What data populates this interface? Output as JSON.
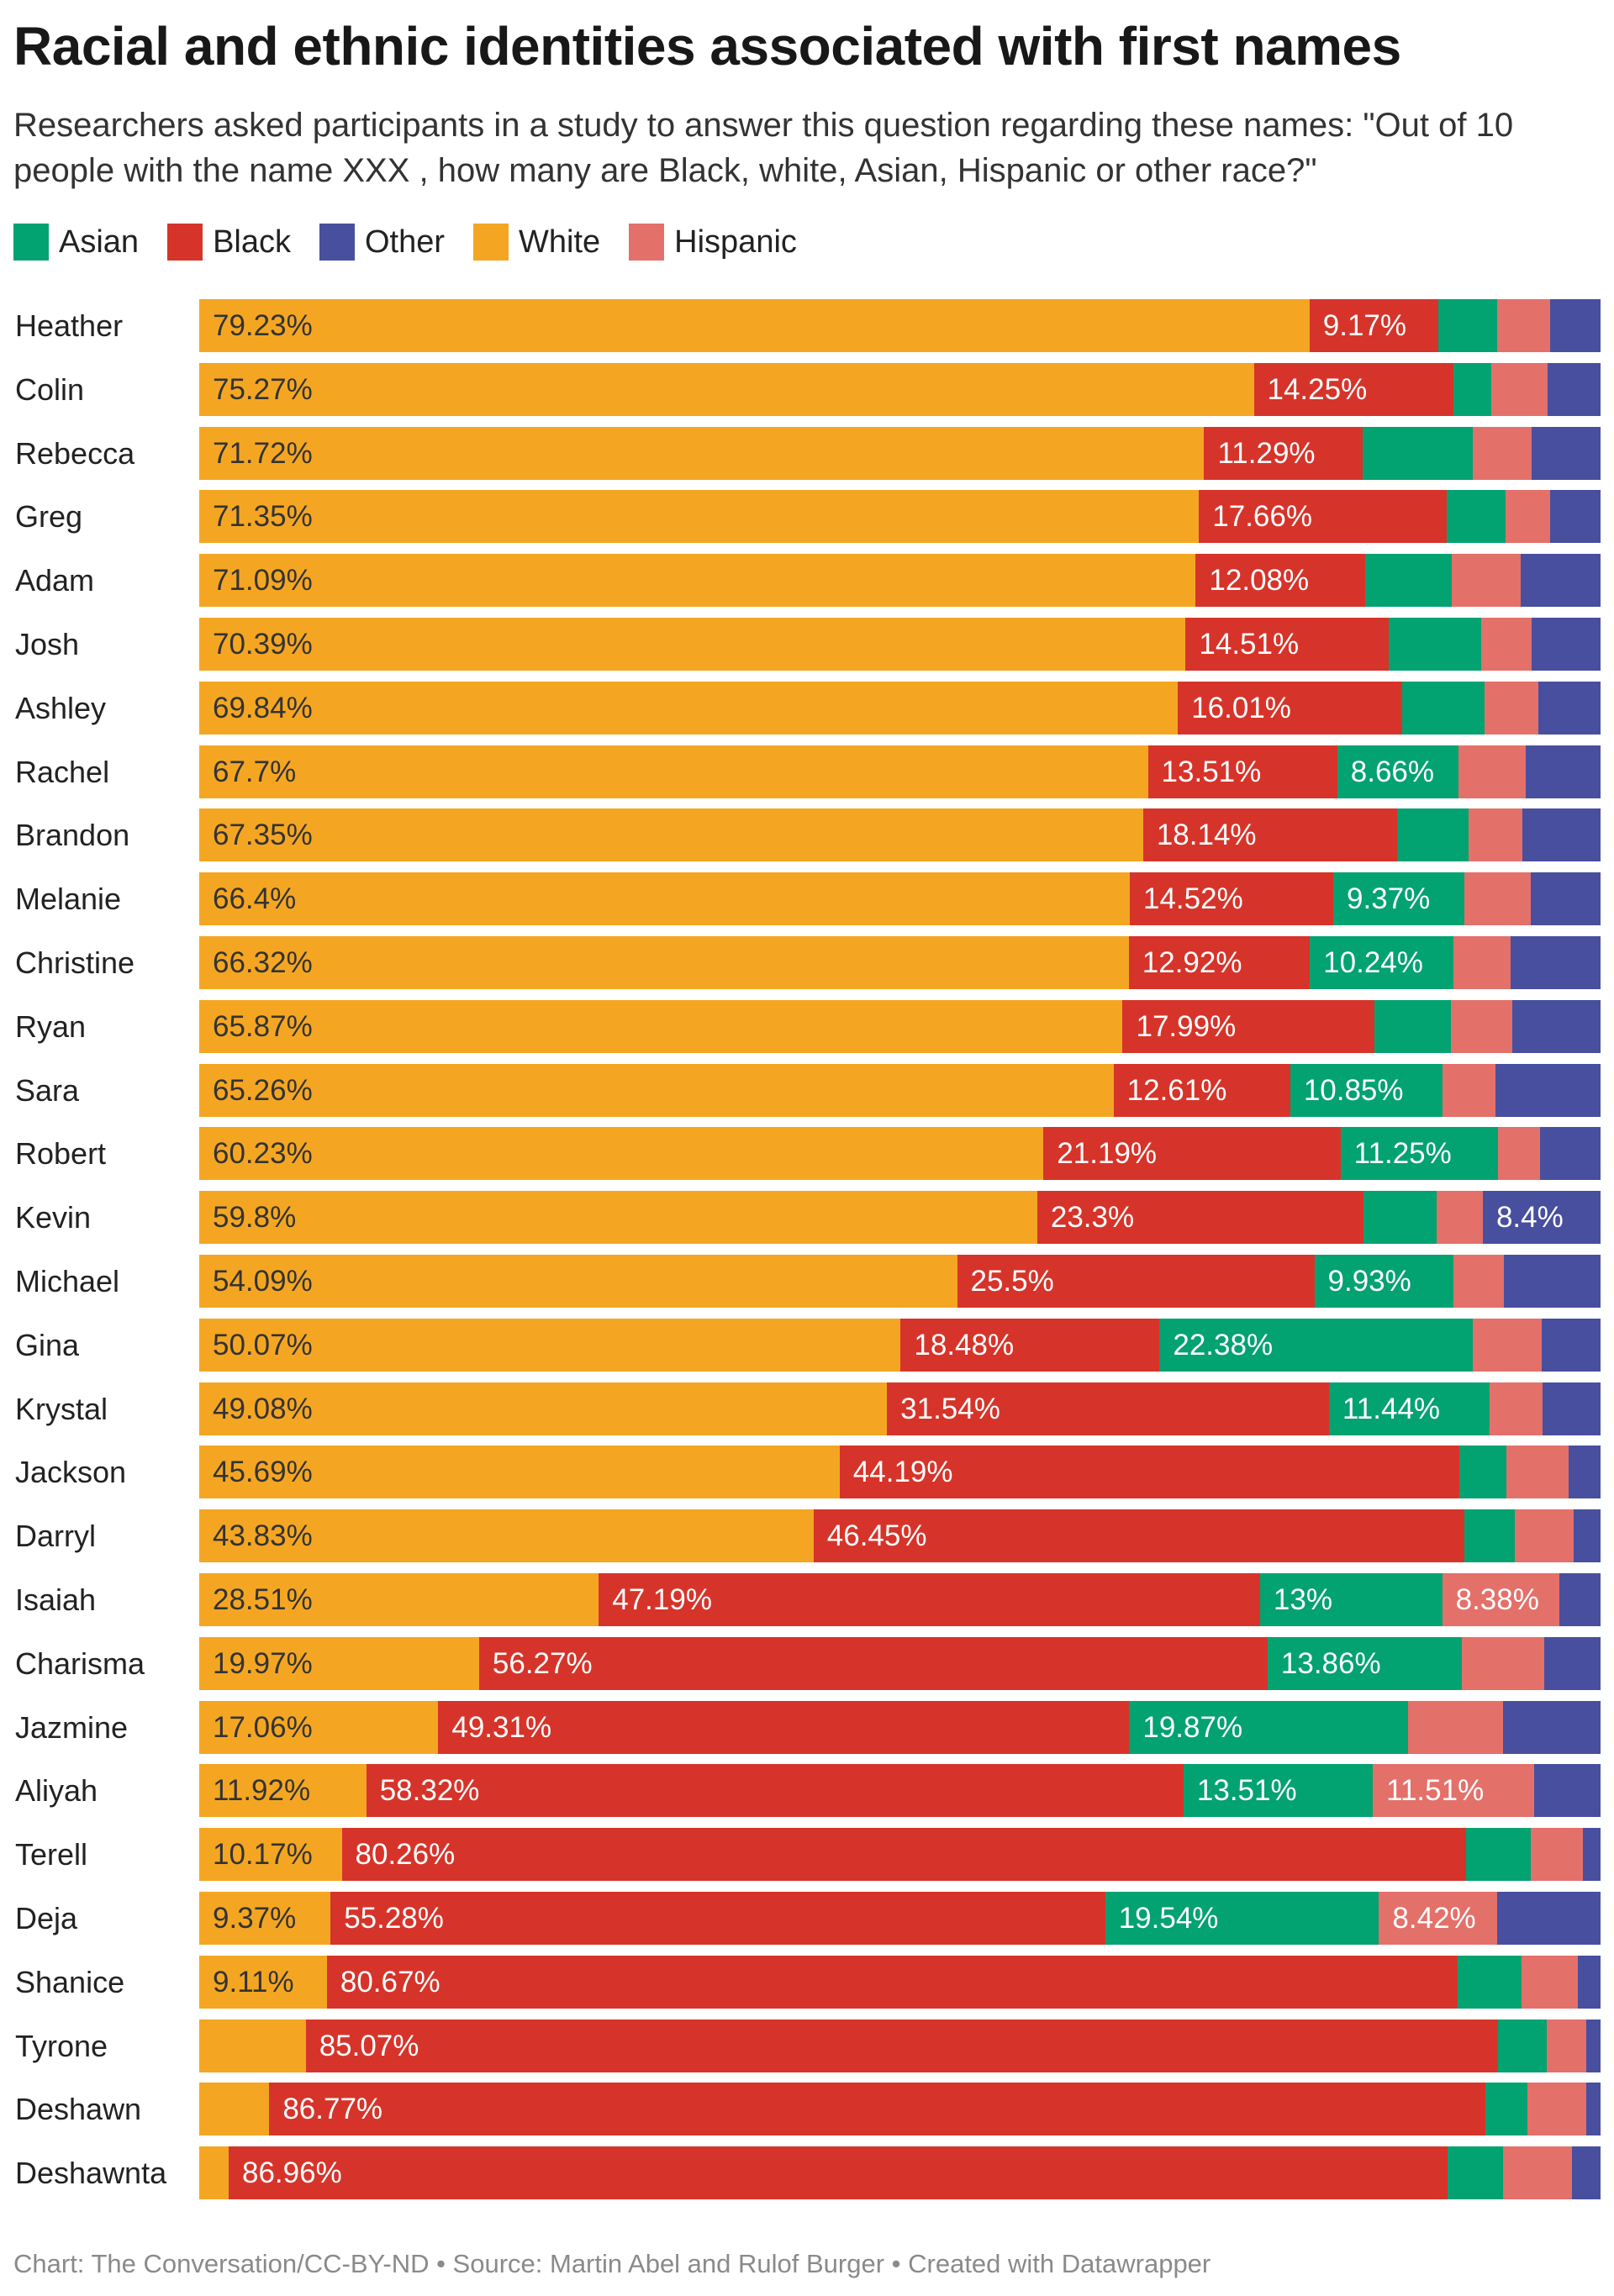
{
  "title": "Racial and ethnic identities associated with first names",
  "subtitle": "Researchers asked participants in a study to answer this question regarding these names: \"Out of 10 people with the name XXX , how many are Black, white, Asian, Hispanic or other race?\"",
  "footer": "Chart: The Conversation/CC-BY-ND • Source: Martin Abel and Rulof Burger • Created with Datawrapper",
  "chart_data": {
    "type": "bar",
    "orientation": "horizontal",
    "stacked": true,
    "unit": "%",
    "xlim": [
      0,
      100
    ],
    "legend_placement": "top-left",
    "legend": [
      {
        "key": "asian",
        "label": "Asian",
        "color": "#03a271"
      },
      {
        "key": "black",
        "label": "Black",
        "color": "#d6342a"
      },
      {
        "key": "other",
        "label": "Other",
        "color": "#484f9e"
      },
      {
        "key": "white",
        "label": "White",
        "color": "#f4a623"
      },
      {
        "key": "hispanic",
        "label": "Hispanic",
        "color": "#e4706a"
      }
    ],
    "segment_order": [
      "white",
      "black",
      "asian",
      "hispanic",
      "other"
    ],
    "rows": [
      {
        "name": "Heather",
        "values": [
          79.23,
          9.17,
          4.2,
          3.8,
          3.6
        ],
        "labels": [
          "79.23%",
          "9.17%",
          "",
          "",
          ""
        ]
      },
      {
        "name": "Colin",
        "values": [
          75.27,
          14.25,
          2.7,
          4.0,
          3.8
        ],
        "labels": [
          "75.27%",
          "14.25%",
          "",
          "",
          ""
        ]
      },
      {
        "name": "Rebecca",
        "values": [
          71.72,
          11.29,
          7.9,
          4.2,
          4.9
        ],
        "labels": [
          "71.72%",
          "11.29%",
          "",
          "",
          ""
        ]
      },
      {
        "name": "Greg",
        "values": [
          71.35,
          17.66,
          4.2,
          3.2,
          3.6
        ],
        "labels": [
          "71.35%",
          "17.66%",
          "",
          "",
          ""
        ]
      },
      {
        "name": "Adam",
        "values": [
          71.09,
          12.08,
          6.2,
          4.9,
          5.7
        ],
        "labels": [
          "71.09%",
          "12.08%",
          "",
          "",
          ""
        ]
      },
      {
        "name": "Josh",
        "values": [
          70.39,
          14.51,
          6.6,
          3.6,
          4.9
        ],
        "labels": [
          "70.39%",
          "14.51%",
          "",
          "",
          ""
        ]
      },
      {
        "name": "Ashley",
        "values": [
          69.84,
          16.01,
          5.9,
          3.8,
          4.45
        ],
        "labels": [
          "69.84%",
          "16.01%",
          "",
          "",
          ""
        ]
      },
      {
        "name": "Rachel",
        "values": [
          67.7,
          13.51,
          8.66,
          4.8,
          5.33
        ],
        "labels": [
          "67.7%",
          "13.51%",
          "8.66%",
          "",
          ""
        ]
      },
      {
        "name": "Brandon",
        "values": [
          67.35,
          18.14,
          5.1,
          3.8,
          5.6
        ],
        "labels": [
          "67.35%",
          "18.14%",
          "",
          "",
          ""
        ]
      },
      {
        "name": "Melanie",
        "values": [
          66.4,
          14.52,
          9.37,
          4.7,
          5.0
        ],
        "labels": [
          "66.4%",
          "14.52%",
          "9.37%",
          "",
          ""
        ]
      },
      {
        "name": "Christine",
        "values": [
          66.32,
          12.92,
          10.24,
          4.1,
          6.4
        ],
        "labels": [
          "66.32%",
          "12.92%",
          "10.24%",
          "",
          ""
        ]
      },
      {
        "name": "Ryan",
        "values": [
          65.87,
          17.99,
          5.4,
          4.4,
          6.3
        ],
        "labels": [
          "65.87%",
          "17.99%",
          "",
          "",
          ""
        ]
      },
      {
        "name": "Sara",
        "values": [
          65.26,
          12.61,
          10.85,
          3.8,
          7.5
        ],
        "labels": [
          "65.26%",
          "12.61%",
          "10.85%",
          "",
          ""
        ]
      },
      {
        "name": "Robert",
        "values": [
          60.23,
          21.19,
          11.25,
          3.0,
          4.3
        ],
        "labels": [
          "60.23%",
          "21.19%",
          "11.25%",
          "",
          ""
        ]
      },
      {
        "name": "Kevin",
        "values": [
          59.8,
          23.3,
          5.2,
          3.3,
          8.4
        ],
        "labels": [
          "59.8%",
          "23.3%",
          "",
          "",
          "8.4%"
        ]
      },
      {
        "name": "Michael",
        "values": [
          54.09,
          25.5,
          9.93,
          3.6,
          6.9
        ],
        "labels": [
          "54.09%",
          "25.5%",
          "9.93%",
          "",
          ""
        ]
      },
      {
        "name": "Gina",
        "values": [
          50.07,
          18.48,
          22.38,
          4.9,
          4.2
        ],
        "labels": [
          "50.07%",
          "18.48%",
          "22.38%",
          "",
          ""
        ]
      },
      {
        "name": "Krystal",
        "values": [
          49.08,
          31.54,
          11.44,
          3.8,
          4.14
        ],
        "labels": [
          "49.08%",
          "31.54%",
          "11.44%",
          "",
          ""
        ]
      },
      {
        "name": "Jackson",
        "values": [
          45.69,
          44.19,
          3.4,
          4.4,
          2.3
        ],
        "labels": [
          "45.69%",
          "44.19%",
          "",
          "",
          ""
        ]
      },
      {
        "name": "Darryl",
        "values": [
          43.83,
          46.45,
          3.6,
          4.2,
          1.9
        ],
        "labels": [
          "43.83%",
          "46.45%",
          "",
          "",
          ""
        ]
      },
      {
        "name": "Isaiah",
        "values": [
          28.51,
          47.19,
          13,
          8.38,
          2.92
        ],
        "labels": [
          "28.51%",
          "47.19%",
          "13%",
          "8.38%",
          ""
        ]
      },
      {
        "name": "Charisma",
        "values": [
          19.97,
          56.27,
          13.86,
          5.9,
          4.0
        ],
        "labels": [
          "19.97%",
          "56.27%",
          "13.86%",
          "",
          ""
        ]
      },
      {
        "name": "Jazmine",
        "values": [
          17.06,
          49.31,
          19.87,
          6.8,
          6.96
        ],
        "labels": [
          "17.06%",
          "49.31%",
          "19.87%",
          "",
          ""
        ]
      },
      {
        "name": "Aliyah",
        "values": [
          11.92,
          58.32,
          13.51,
          11.51,
          4.74
        ],
        "labels": [
          "11.92%",
          "58.32%",
          "13.51%",
          "11.51%",
          ""
        ]
      },
      {
        "name": "Terell",
        "values": [
          10.17,
          80.26,
          4.6,
          3.7,
          1.27
        ],
        "labels": [
          "10.17%",
          "80.26%",
          "",
          "",
          ""
        ]
      },
      {
        "name": "Deja",
        "values": [
          9.37,
          55.28,
          19.54,
          8.42,
          7.39
        ],
        "labels": [
          "9.37%",
          "55.28%",
          "19.54%",
          "8.42%",
          ""
        ]
      },
      {
        "name": "Shanice",
        "values": [
          9.11,
          80.67,
          4.6,
          4.0,
          1.62
        ],
        "labels": [
          "9.11%",
          "80.67%",
          "",
          "",
          ""
        ]
      },
      {
        "name": "Tyrone",
        "values": [
          7.6,
          85.07,
          3.5,
          2.8,
          1.03
        ],
        "labels": [
          "",
          "85.07%",
          "",
          "",
          ""
        ]
      },
      {
        "name": "Deshawn",
        "values": [
          5.0,
          86.77,
          3.0,
          4.2,
          1.03
        ],
        "labels": [
          "",
          "86.77%",
          "",
          "",
          ""
        ]
      },
      {
        "name": "Deshawnta",
        "values": [
          2.1,
          86.96,
          4.0,
          4.9,
          2.04
        ],
        "labels": [
          "",
          "86.96%",
          "",
          "",
          ""
        ]
      }
    ]
  }
}
